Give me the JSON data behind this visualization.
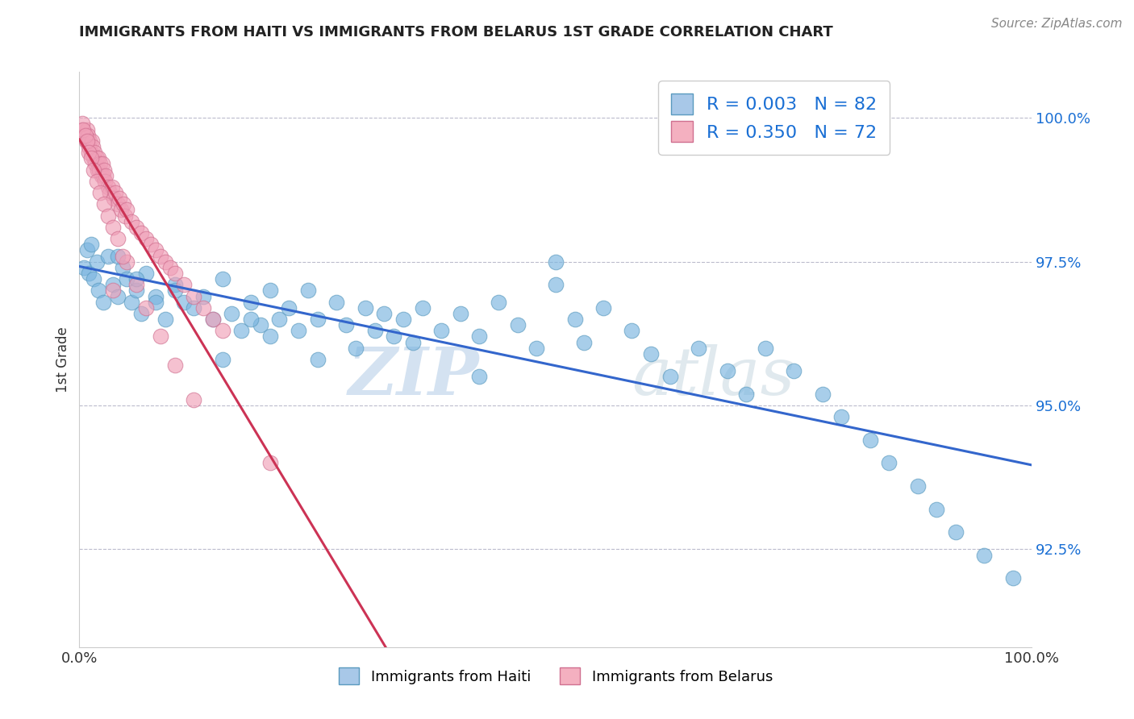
{
  "title": "IMMIGRANTS FROM HAITI VS IMMIGRANTS FROM BELARUS 1ST GRADE CORRELATION CHART",
  "source": "Source: ZipAtlas.com",
  "ylabel": "1st Grade",
  "ylabel_right_ticks": [
    "100.0%",
    "97.5%",
    "95.0%",
    "92.5%"
  ],
  "ylabel_right_values": [
    1.0,
    0.975,
    0.95,
    0.925
  ],
  "legend1_label": "Immigrants from Haiti",
  "legend2_label": "Immigrants from Belarus",
  "legend1_color": "#a8c8e8",
  "legend2_color": "#f4b0c0",
  "r1": 0.003,
  "n1": 82,
  "r2": 0.35,
  "n2": 72,
  "r_color": "#1a6fd4",
  "haiti_color": "#7ab5e0",
  "haiti_edge": "#5a9abf",
  "belarus_color": "#f0a0b8",
  "belarus_edge": "#d07090",
  "haiti_line_color": "#3366cc",
  "belarus_line_color": "#cc3355",
  "watermark_zip": "ZIP",
  "watermark_atlas": "atlas",
  "ylim_low": 0.908,
  "ylim_high": 1.008,
  "haiti_x": [
    0.005,
    0.008,
    0.01,
    0.012,
    0.015,
    0.018,
    0.02,
    0.025,
    0.03,
    0.035,
    0.04,
    0.045,
    0.05,
    0.055,
    0.06,
    0.065,
    0.07,
    0.08,
    0.09,
    0.1,
    0.11,
    0.12,
    0.13,
    0.14,
    0.15,
    0.16,
    0.17,
    0.18,
    0.19,
    0.2,
    0.21,
    0.22,
    0.23,
    0.24,
    0.25,
    0.27,
    0.28,
    0.29,
    0.3,
    0.31,
    0.32,
    0.33,
    0.34,
    0.35,
    0.36,
    0.38,
    0.4,
    0.42,
    0.44,
    0.46,
    0.48,
    0.5,
    0.52,
    0.53,
    0.55,
    0.58,
    0.6,
    0.62,
    0.65,
    0.68,
    0.7,
    0.72,
    0.75,
    0.78,
    0.8,
    0.83,
    0.85,
    0.88,
    0.9,
    0.92,
    0.95,
    0.98,
    0.5,
    0.42,
    0.15,
    0.2,
    0.25,
    0.18,
    0.1,
    0.08,
    0.06,
    0.04
  ],
  "haiti_y": [
    0.974,
    0.977,
    0.973,
    0.978,
    0.972,
    0.975,
    0.97,
    0.968,
    0.976,
    0.971,
    0.969,
    0.974,
    0.972,
    0.968,
    0.97,
    0.966,
    0.973,
    0.969,
    0.965,
    0.971,
    0.968,
    0.967,
    0.969,
    0.965,
    0.972,
    0.966,
    0.963,
    0.968,
    0.964,
    0.97,
    0.965,
    0.967,
    0.963,
    0.97,
    0.965,
    0.968,
    0.964,
    0.96,
    0.967,
    0.963,
    0.966,
    0.962,
    0.965,
    0.961,
    0.967,
    0.963,
    0.966,
    0.962,
    0.968,
    0.964,
    0.96,
    0.971,
    0.965,
    0.961,
    0.967,
    0.963,
    0.959,
    0.955,
    0.96,
    0.956,
    0.952,
    0.96,
    0.956,
    0.952,
    0.948,
    0.944,
    0.94,
    0.936,
    0.932,
    0.928,
    0.924,
    0.92,
    0.975,
    0.955,
    0.958,
    0.962,
    0.958,
    0.965,
    0.97,
    0.968,
    0.972,
    0.976
  ],
  "belarus_x": [
    0.003,
    0.005,
    0.007,
    0.008,
    0.009,
    0.01,
    0.011,
    0.012,
    0.013,
    0.014,
    0.015,
    0.016,
    0.017,
    0.018,
    0.019,
    0.02,
    0.021,
    0.022,
    0.023,
    0.024,
    0.025,
    0.026,
    0.027,
    0.028,
    0.03,
    0.032,
    0.034,
    0.036,
    0.038,
    0.04,
    0.042,
    0.044,
    0.046,
    0.048,
    0.05,
    0.055,
    0.06,
    0.065,
    0.07,
    0.075,
    0.08,
    0.085,
    0.09,
    0.095,
    0.1,
    0.11,
    0.12,
    0.13,
    0.14,
    0.15,
    0.003,
    0.004,
    0.006,
    0.008,
    0.01,
    0.012,
    0.015,
    0.018,
    0.022,
    0.026,
    0.03,
    0.035,
    0.04,
    0.05,
    0.06,
    0.07,
    0.085,
    0.1,
    0.12,
    0.035,
    0.045,
    0.2
  ],
  "belarus_y": [
    0.998,
    0.997,
    0.996,
    0.998,
    0.997,
    0.995,
    0.996,
    0.994,
    0.996,
    0.995,
    0.993,
    0.994,
    0.992,
    0.993,
    0.991,
    0.993,
    0.991,
    0.992,
    0.99,
    0.992,
    0.99,
    0.991,
    0.989,
    0.99,
    0.988,
    0.987,
    0.988,
    0.986,
    0.987,
    0.985,
    0.986,
    0.984,
    0.985,
    0.983,
    0.984,
    0.982,
    0.981,
    0.98,
    0.979,
    0.978,
    0.977,
    0.976,
    0.975,
    0.974,
    0.973,
    0.971,
    0.969,
    0.967,
    0.965,
    0.963,
    0.999,
    0.998,
    0.997,
    0.996,
    0.994,
    0.993,
    0.991,
    0.989,
    0.987,
    0.985,
    0.983,
    0.981,
    0.979,
    0.975,
    0.971,
    0.967,
    0.962,
    0.957,
    0.951,
    0.97,
    0.976,
    0.94
  ]
}
